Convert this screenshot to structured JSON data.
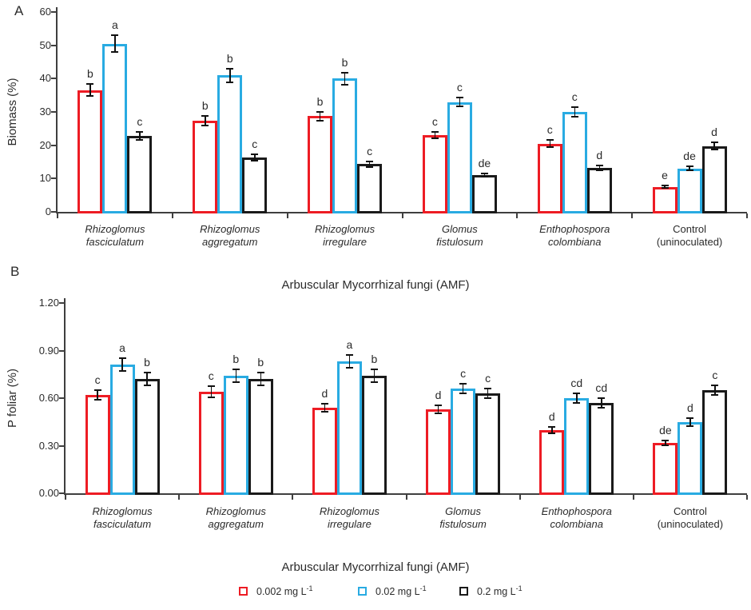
{
  "chart_data": [
    {
      "type": "bar",
      "panel_label": "A",
      "ylabel": "Biomass (%)",
      "xlabel": "Arbuscular Mycorrhizal fungi (AMF)",
      "ylim": [
        0,
        60
      ],
      "yticks": [
        0,
        10,
        20,
        30,
        40,
        50,
        60
      ],
      "ytick_labels": [
        "0",
        "10",
        "20",
        "30",
        "40",
        "50",
        "60"
      ],
      "grid": false,
      "categories": [
        "Rhizoglomus fasciculatum",
        "Rhizoglomus aggregatum",
        "Rhizoglomus irregulare",
        "Glomus fistulosum",
        "Enthophospora colombiana",
        "Control (uninoculated)"
      ],
      "series": [
        {
          "name": "0.002 mg L⁻¹",
          "color": "#ed1c24",
          "values": [
            36.5,
            27.3,
            28.7,
            23.0,
            20.5,
            7.5
          ],
          "errors": [
            1.8,
            1.4,
            1.4,
            1.0,
            1.0,
            0.4
          ],
          "sig_letters": [
            "b",
            "b",
            "b",
            "c",
            "c",
            "e"
          ]
        },
        {
          "name": "0.02 mg L⁻¹",
          "color": "#29abe2",
          "values": [
            50.5,
            41.0,
            40.0,
            33.0,
            30.0,
            13.0
          ],
          "errors": [
            2.5,
            2.0,
            1.8,
            1.3,
            1.4,
            0.6
          ],
          "sig_letters": [
            "a",
            "b",
            "b",
            "c",
            "c",
            "de"
          ]
        },
        {
          "name": "0.2 mg L⁻¹",
          "color": "#1a1a1a",
          "values": [
            22.8,
            16.3,
            14.3,
            11.0,
            13.3,
            19.8
          ],
          "errors": [
            1.2,
            0.9,
            0.9,
            0.5,
            0.7,
            1.0
          ],
          "sig_letters": [
            "c",
            "c",
            "c",
            "de",
            "d",
            "d"
          ]
        }
      ]
    },
    {
      "type": "bar",
      "panel_label": "B",
      "ylabel": "P foliar (%)",
      "xlabel": "Arbuscular Mycorrhizal fungi (AMF)",
      "ylim": [
        0,
        1.2
      ],
      "yticks": [
        0,
        0.3,
        0.6,
        0.9,
        1.2
      ],
      "ytick_labels": [
        "0.00",
        "0.30",
        "0.60",
        "0.90",
        "1.20"
      ],
      "grid": false,
      "categories": [
        "Rhizoglomus fasciculatum",
        "Rhizoglomus aggregatum",
        "Rhizoglomus irregulare",
        "Glomus fistulosum",
        "Enthophospora colombiana",
        "Control (uninoculated)"
      ],
      "series": [
        {
          "name": "0.002 mg L⁻¹",
          "color": "#ed1c24",
          "values": [
            0.62,
            0.64,
            0.54,
            0.53,
            0.4,
            0.32
          ],
          "errors": [
            0.03,
            0.035,
            0.025,
            0.025,
            0.02,
            0.015
          ],
          "sig_letters": [
            "c",
            "c",
            "d",
            "d",
            "d",
            "de"
          ]
        },
        {
          "name": "0.02 mg L⁻¹",
          "color": "#29abe2",
          "values": [
            0.81,
            0.74,
            0.83,
            0.66,
            0.6,
            0.45
          ],
          "errors": [
            0.04,
            0.04,
            0.04,
            0.03,
            0.03,
            0.025
          ],
          "sig_letters": [
            "a",
            "b",
            "a",
            "c",
            "cd",
            "d"
          ]
        },
        {
          "name": "0.2 mg L⁻¹",
          "color": "#1a1a1a",
          "values": [
            0.72,
            0.72,
            0.74,
            0.63,
            0.57,
            0.65
          ],
          "errors": [
            0.04,
            0.04,
            0.04,
            0.03,
            0.03,
            0.03
          ],
          "sig_letters": [
            "b",
            "b",
            "b",
            "c",
            "cd",
            "c"
          ]
        }
      ]
    }
  ],
  "categories_display": [
    {
      "line1": "Rhizoglomus",
      "line2": "fasciculatum",
      "italic": true
    },
    {
      "line1": "Rhizoglomus",
      "line2": "aggregatum",
      "italic": true
    },
    {
      "line1": "Rhizoglomus",
      "line2": "irregulare",
      "italic": true
    },
    {
      "line1": "Glomus",
      "line2": "fistulosum",
      "italic": true
    },
    {
      "line1": "Enthophospora",
      "line2": "colombiana",
      "italic": true
    },
    {
      "line1": "Control",
      "line2": "(uninoculated)",
      "italic": false
    }
  ],
  "legend": {
    "items": [
      {
        "label": "0.002 mg L",
        "sup": "-1",
        "color": "#ed1c24"
      },
      {
        "label": "0.02 mg L",
        "sup": "-1",
        "color": "#29abe2"
      },
      {
        "label": "0.2 mg L",
        "sup": "-1",
        "color": "#1a1a1a"
      }
    ]
  }
}
